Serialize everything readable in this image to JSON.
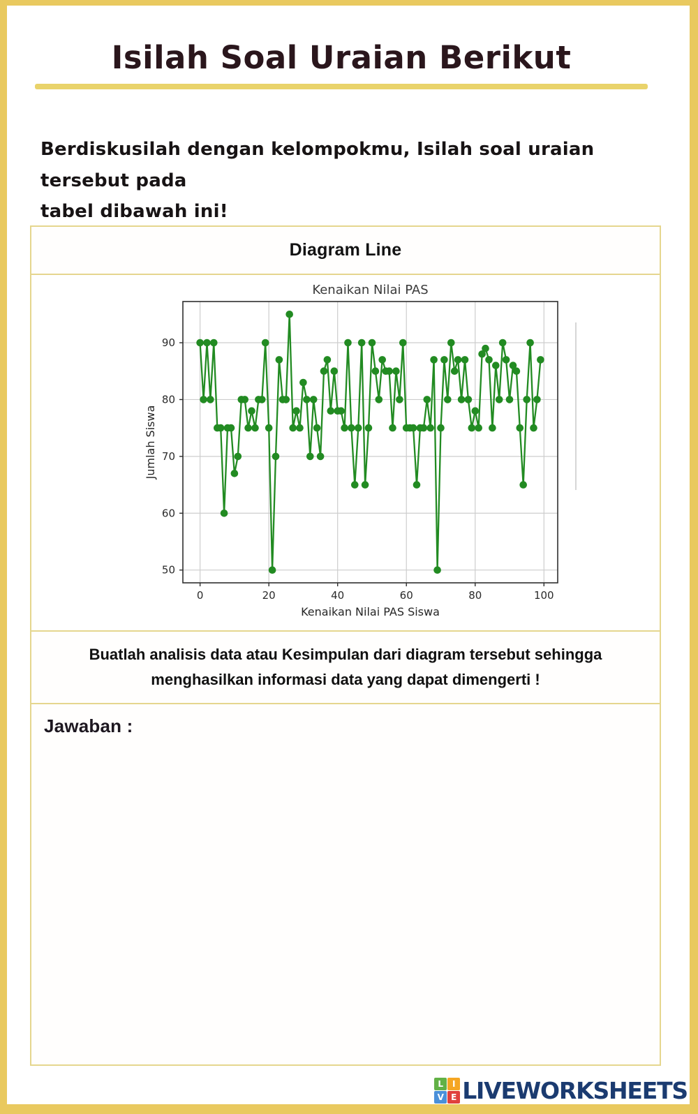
{
  "page": {
    "title": "Isilah Soal Uraian Berikut",
    "instruction_lines": [
      "Berdiskusilah dengan kelompokmu, Isilah soal uraian tersebut pada",
      "tabel dibawah ini!"
    ],
    "box": {
      "header": "Diagram Line",
      "prompt_lines": [
        "Buatlah analisis data atau Kesimpulan dari diagram tersebut sehingga",
        "menghasilkan informasi data yang dapat dimengerti !"
      ],
      "answer_label": "Jawaban :"
    },
    "footer": {
      "brand": "LIVEWORKSHEETS",
      "brand_color": "#1b3b70",
      "logo_squares": [
        {
          "letter": "L",
          "color": "#62b146"
        },
        {
          "letter": "I",
          "color": "#f5a623"
        },
        {
          "letter": "V",
          "color": "#4a90d9"
        },
        {
          "letter": "E",
          "color": "#e0413d"
        }
      ]
    },
    "colors": {
      "page_frame": "#e9c95f",
      "box_border": "#e5d68e",
      "title_underline": "#e9d36b"
    }
  },
  "chart_data": {
    "type": "line",
    "title": "Kenaikan Nilai PAS",
    "xlabel": "Kenaikan Nilai PAS Siswa",
    "ylabel": "Jumlah Siswa",
    "x_range": [
      0,
      99
    ],
    "values": [
      90,
      80,
      90,
      80,
      90,
      75,
      75,
      60,
      75,
      75,
      67,
      70,
      80,
      80,
      75,
      78,
      75,
      80,
      80,
      90,
      75,
      50,
      70,
      87,
      80,
      80,
      95,
      75,
      78,
      75,
      83,
      80,
      70,
      80,
      75,
      70,
      85,
      87,
      78,
      85,
      78,
      78,
      75,
      90,
      75,
      65,
      75,
      90,
      65,
      75,
      90,
      85,
      80,
      87,
      85,
      85,
      75,
      85,
      80,
      90,
      75,
      75,
      75,
      65,
      75,
      75,
      80,
      75,
      87,
      50,
      75,
      87,
      80,
      90,
      85,
      87,
      80,
      87,
      80,
      75,
      78,
      75,
      88,
      89,
      87,
      75,
      86,
      80,
      90,
      87,
      80,
      86,
      85,
      75,
      65,
      80,
      90,
      75,
      80,
      87
    ],
    "xticks": [
      0,
      20,
      40,
      60,
      80,
      100
    ],
    "yticks": [
      50,
      60,
      70,
      80,
      90
    ],
    "xlim": [
      -5,
      104
    ],
    "ylim": [
      47.75,
      97.25
    ],
    "grid": true,
    "legend": null,
    "line_color": "#228B22",
    "marker": "o"
  }
}
